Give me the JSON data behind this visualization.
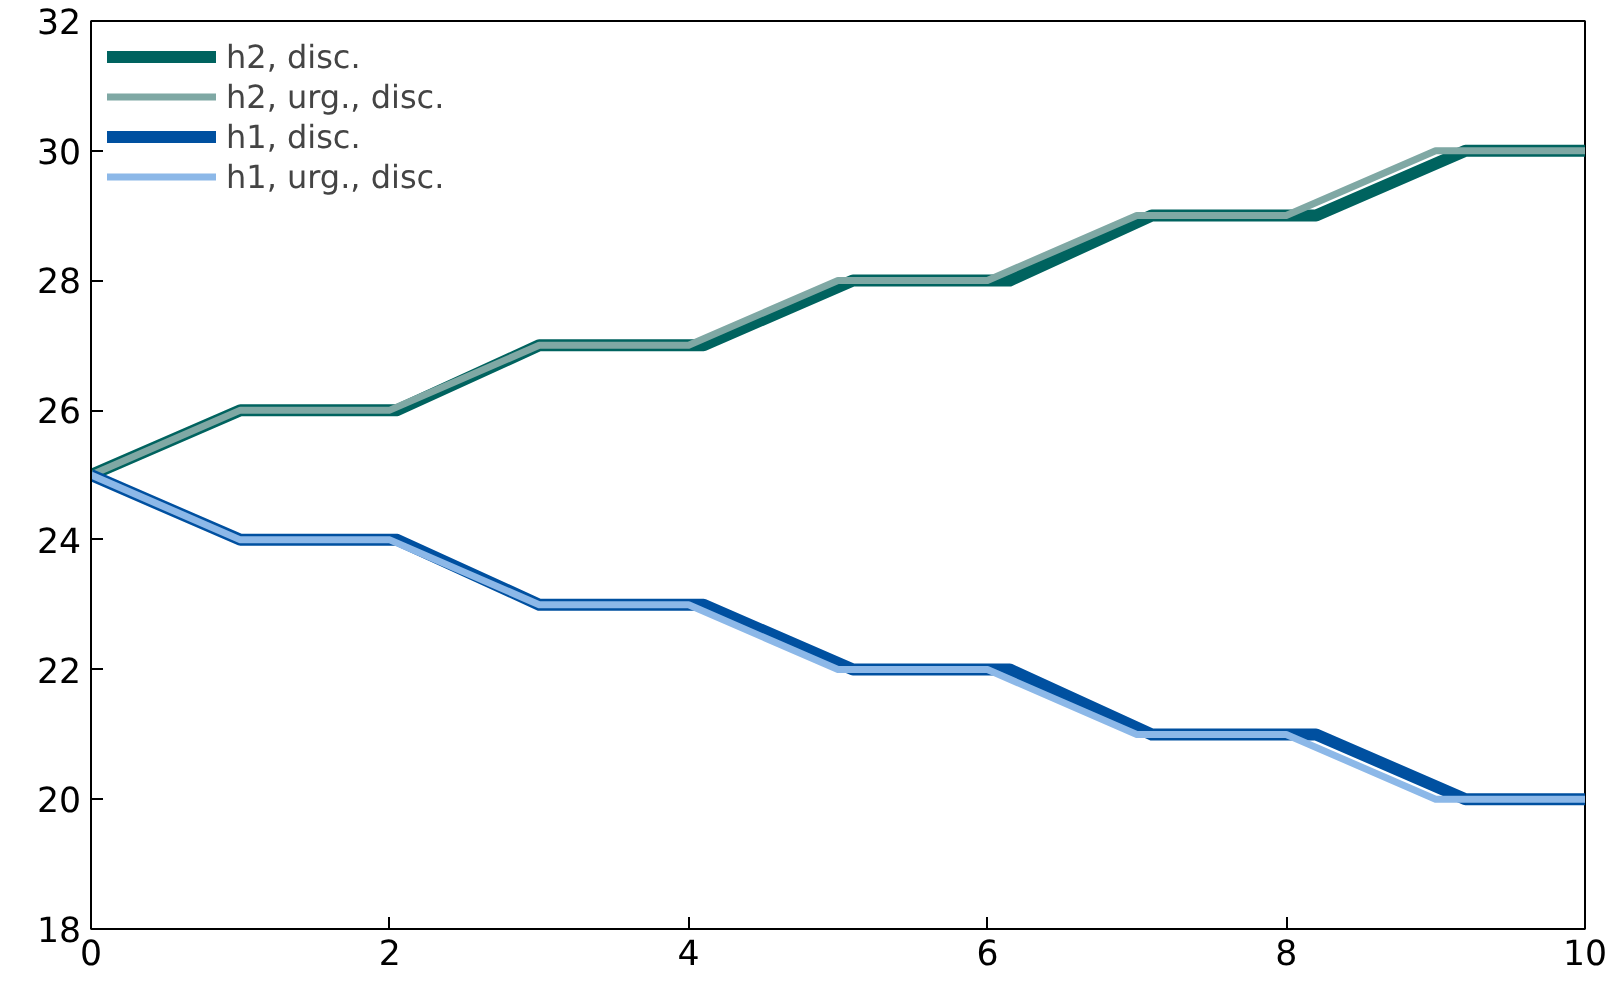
{
  "chart_data": {
    "type": "line",
    "xlim": [
      0,
      10
    ],
    "ylim": [
      18,
      32
    ],
    "xticks": [
      0,
      2,
      4,
      6,
      8,
      10
    ],
    "yticks": [
      18,
      20,
      22,
      24,
      26,
      28,
      30,
      32
    ],
    "grid": false,
    "legend": "top left",
    "marker": "none",
    "line_style": "solid",
    "series": [
      {
        "name": "h2, disc.",
        "color": "#00635f",
        "x": [
          0,
          1,
          2.05,
          3,
          4.1,
          5.1,
          6.15,
          7.1,
          8.2,
          9.2,
          10
        ],
        "values": [
          25,
          26,
          26,
          27,
          27,
          28,
          28,
          29,
          29,
          30,
          30
        ]
      },
      {
        "name": "h2, urg., disc.",
        "color": "#7fa8a4",
        "x": [
          0,
          1,
          2,
          3,
          4,
          5,
          6,
          7,
          8,
          9,
          10
        ],
        "values": [
          25,
          26,
          26,
          27,
          27,
          28,
          28,
          29,
          29,
          30,
          30
        ]
      },
      {
        "name": "h1, disc.",
        "color": "#0050a0",
        "x": [
          0,
          1,
          2.05,
          3,
          4.1,
          5.1,
          6.15,
          7.1,
          8.2,
          9.2,
          10
        ],
        "values": [
          25,
          24,
          24,
          23,
          23,
          22,
          22,
          21,
          21,
          20,
          20
        ]
      },
      {
        "name": "h1, urg., disc.",
        "color": "#8cb8e8",
        "x": [
          0,
          1,
          2,
          3,
          4,
          5,
          6,
          7,
          8,
          9,
          10
        ],
        "values": [
          25,
          24,
          24,
          23,
          23,
          22,
          22,
          21,
          21,
          20,
          20
        ]
      }
    ]
  }
}
